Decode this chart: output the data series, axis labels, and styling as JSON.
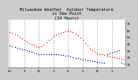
{
  "title": "Milwaukee Weather  Outdoor Temperature\nvs Dew Point\n(24 Hours)",
  "bg_color": "#cccccc",
  "plot_bg_color": "#ffffff",
  "grid_color": "#888888",
  "temp_color": "#ff0000",
  "dew_color": "#0000cc",
  "text_color": "#000000",
  "ylim": [
    10,
    80
  ],
  "ytick_values": [
    15,
    25,
    35,
    45,
    55,
    65,
    75
  ],
  "ytick_labels": [
    "15",
    "25",
    "35",
    "45",
    "55",
    "65",
    "75"
  ],
  "title_fontsize": 3.8,
  "tick_fontsize": 2.8,
  "num_points": 48,
  "temp_data": [
    62,
    61,
    59,
    57,
    55,
    53,
    50,
    48,
    46,
    44,
    43,
    41,
    40,
    41,
    44,
    47,
    50,
    53,
    56,
    58,
    60,
    61,
    62,
    63,
    64,
    63,
    62,
    60,
    57,
    54,
    50,
    46,
    42,
    38,
    35,
    33,
    31,
    30,
    29,
    28,
    27,
    26,
    25,
    25,
    24,
    24,
    23,
    22
  ],
  "dew_data": [
    42,
    41,
    40,
    39,
    38,
    37,
    36,
    35,
    34,
    33,
    32,
    31,
    30,
    30,
    30,
    30,
    30,
    30,
    30,
    29,
    29,
    28,
    28,
    27,
    27,
    26,
    25,
    24,
    24,
    23,
    22,
    21,
    20,
    20,
    19,
    19,
    18,
    18,
    17,
    17,
    30,
    31,
    32,
    33,
    34,
    35,
    17,
    16
  ],
  "vgrid_interval": 6,
  "x_tick_interval": 6,
  "x_tick_labels": [
    "6a",
    "9",
    "12",
    "3",
    "6",
    "9",
    "12",
    "3",
    "6p"
  ]
}
